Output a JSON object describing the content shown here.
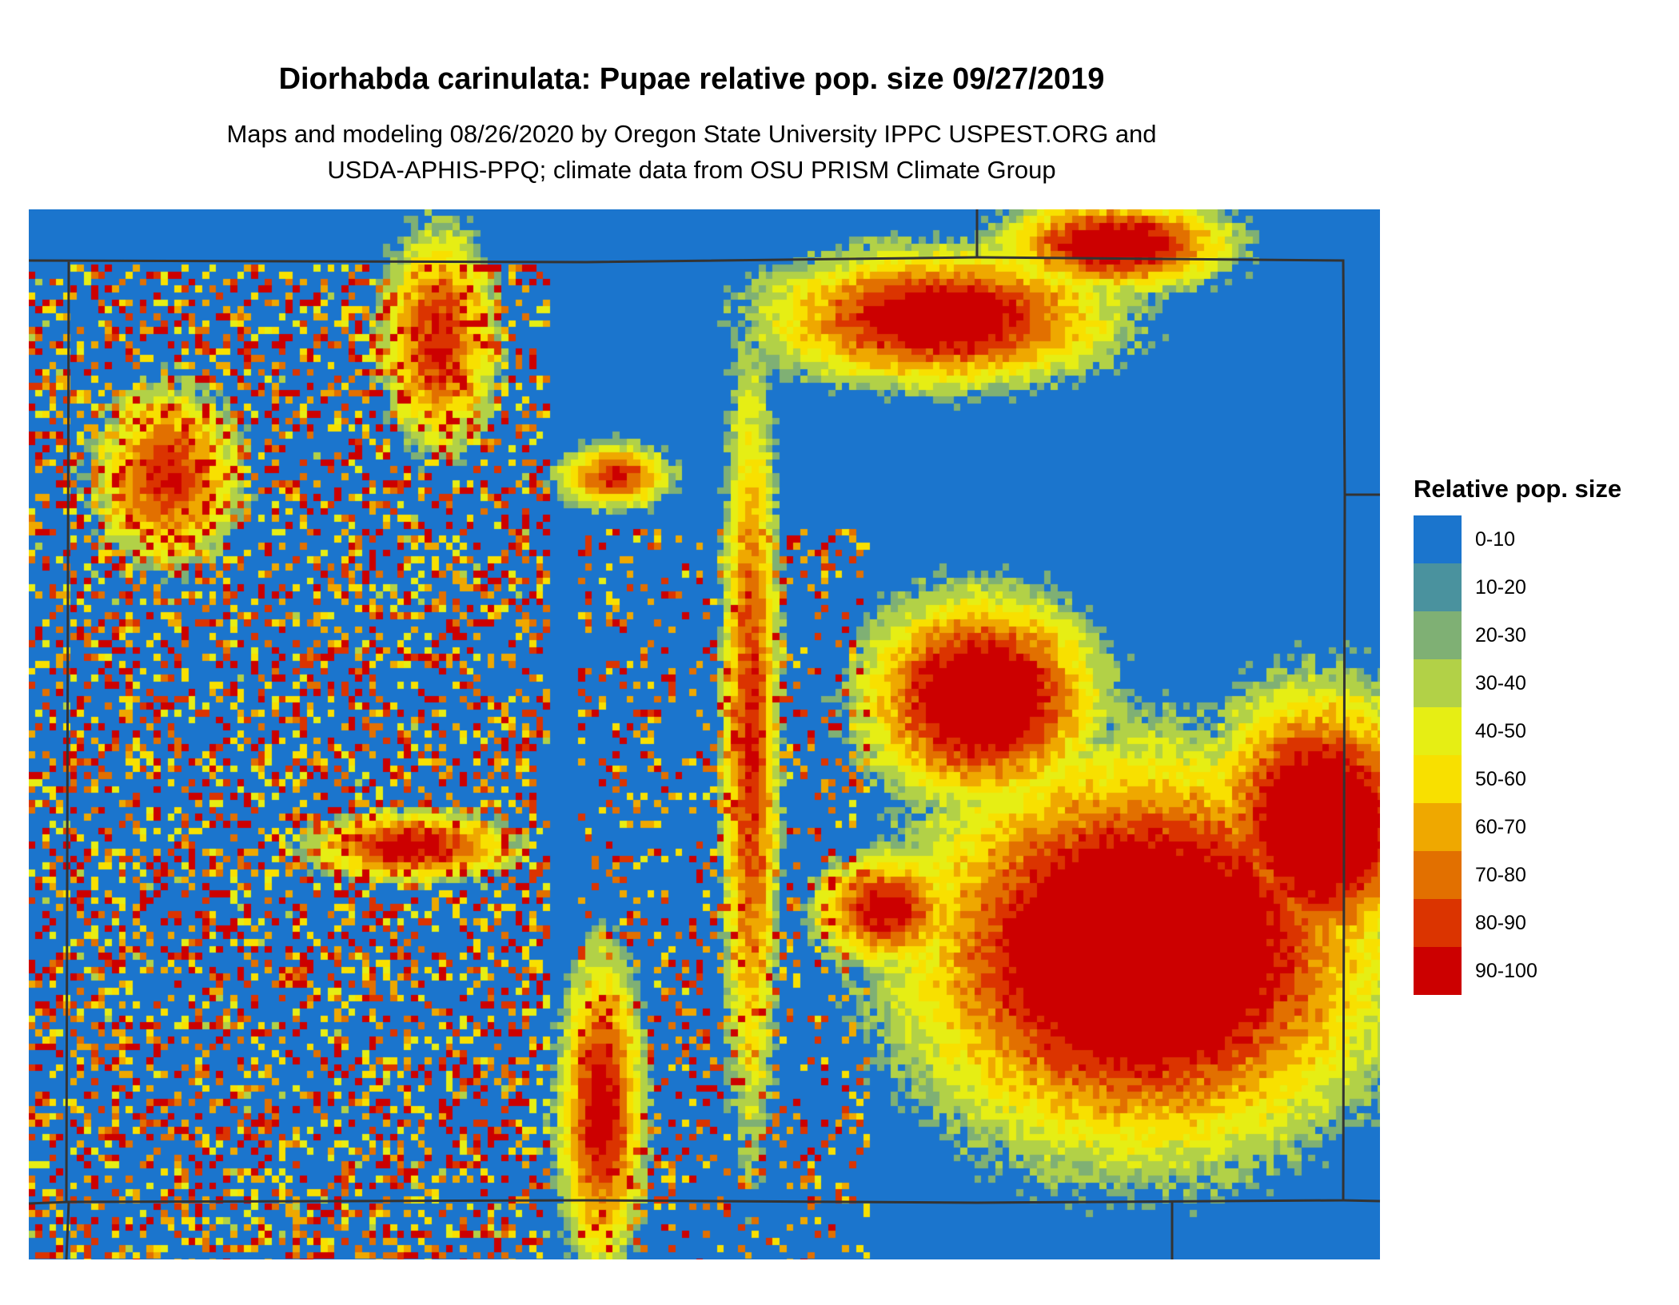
{
  "title": "Diorhabda carinulata: Pupae relative pop. size 09/27/2019",
  "subtitle_lines": [
    "Maps and modeling 08/26/2020 by Oregon State University IPPC USPEST.ORG and",
    "USDA-APHIS-PPQ; climate data from OSU PRISM Climate Group"
  ],
  "legend": {
    "title": "Relative pop. size",
    "items": [
      {
        "label": "0-10",
        "color": "#1b75cd"
      },
      {
        "label": "10-20",
        "color": "#4a929e"
      },
      {
        "label": "20-30",
        "color": "#7fb074"
      },
      {
        "label": "30-40",
        "color": "#b2d147"
      },
      {
        "label": "40-50",
        "color": "#e6ee14"
      },
      {
        "label": "50-60",
        "color": "#f8e000"
      },
      {
        "label": "60-70",
        "color": "#efa800"
      },
      {
        "label": "70-80",
        "color": "#e27000"
      },
      {
        "label": "80-90",
        "color": "#db3400"
      },
      {
        "label": "90-100",
        "color": "#cc0000"
      }
    ]
  },
  "border_color": "#333333"
}
